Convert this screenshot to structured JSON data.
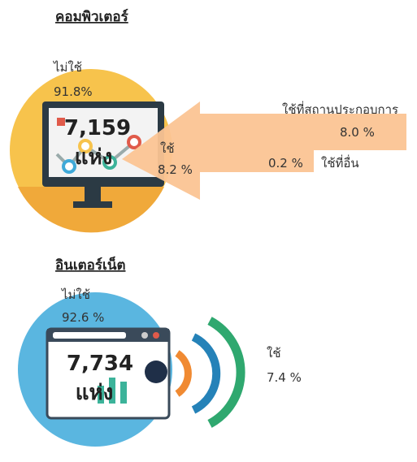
{
  "computer": {
    "title": "คอมพิวเตอร์",
    "not_use_label": "ไม่ใช้",
    "not_use_value": "91.8%",
    "count": "7,159",
    "unit": "แห่ง",
    "use_label": "ใช้",
    "use_value": "8.2 %",
    "breakdown": [
      {
        "label": "ใช้ที่สถานประกอบการ",
        "value": "8.0 %"
      },
      {
        "label": "ใช้ที่อื่น",
        "value": "0.2 %"
      }
    ]
  },
  "internet": {
    "title": "อินเตอร์เน็ต",
    "not_use_label": "ไม่ใช้",
    "not_use_value": "92.6 %",
    "count": "7,734",
    "unit": "แห่ง",
    "use_label": "ใช้",
    "use_value": "7.4 %"
  }
}
